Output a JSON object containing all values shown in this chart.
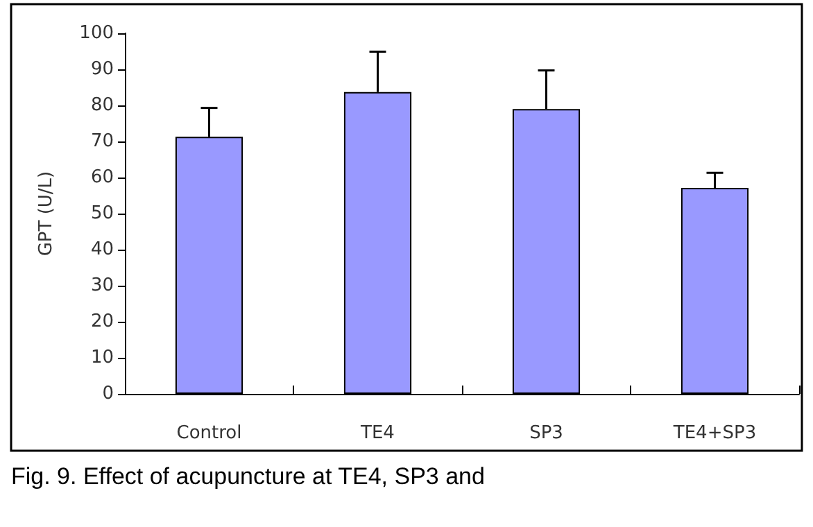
{
  "chart_data": {
    "type": "bar",
    "ylabel": "GPT (U/L)",
    "categories": [
      "Control",
      "TE4",
      "SP3",
      "TE4+SP3"
    ],
    "values": [
      71.3,
      83.7,
      79,
      57.1
    ],
    "errors": [
      [
        71.3,
        79.3
      ],
      [
        83.7,
        94.9
      ],
      [
        79,
        89.7
      ],
      [
        57.1,
        61.3
      ]
    ],
    "color": "#9999ff",
    "ylim": [
      0,
      100
    ],
    "yticks": [
      0,
      10,
      20,
      30,
      40,
      50,
      60,
      70,
      80,
      90,
      100
    ],
    "grid": false,
    "annotations": [
      "Fig. 9. Effect of acupuncture at TE4, SP3 and"
    ]
  }
}
